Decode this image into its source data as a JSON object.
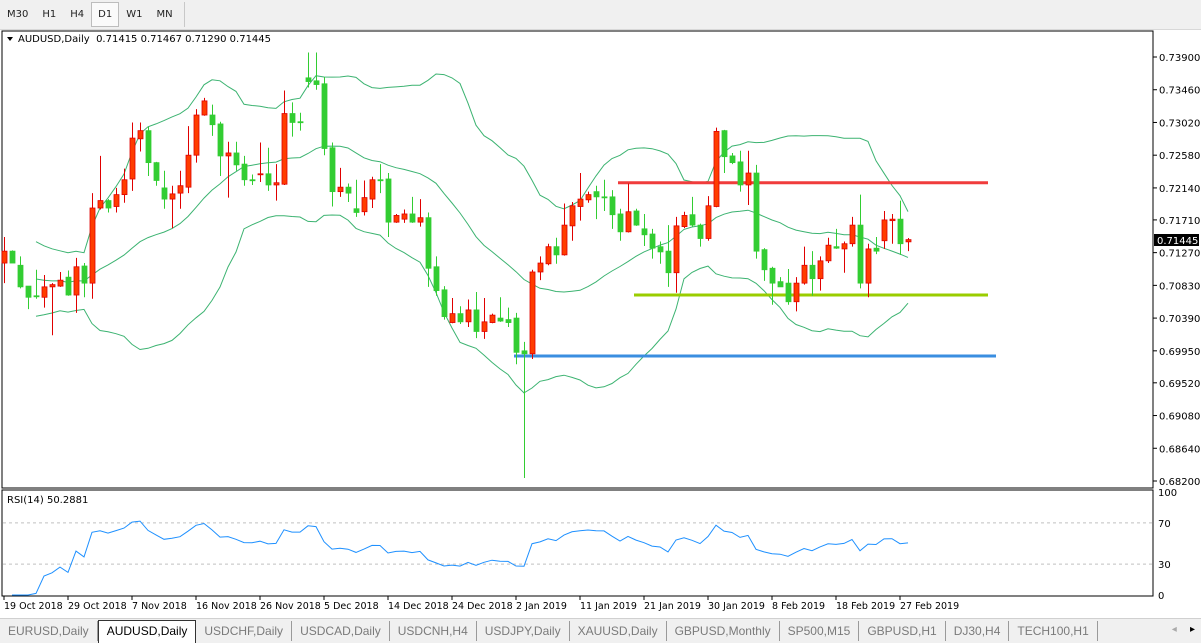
{
  "toolbar": {
    "timeframes": [
      {
        "label": "M30",
        "active": false
      },
      {
        "label": "H1",
        "active": false
      },
      {
        "label": "H4",
        "active": false
      },
      {
        "label": "D1",
        "active": true
      },
      {
        "label": "W1",
        "active": false
      },
      {
        "label": "MN",
        "active": false
      }
    ]
  },
  "chart": {
    "header": "AUDUSD,Daily  0.71415 0.71467 0.71290 0.71445",
    "current_price": "0.71445",
    "price_axis": [
      "0.73900",
      "0.73460",
      "0.73020",
      "0.72580",
      "0.72140",
      "0.71710",
      "0.71270",
      "0.70830",
      "0.70390",
      "0.69950",
      "0.69520",
      "0.69080",
      "0.68640",
      "0.68200"
    ],
    "price_range": [
      0.682,
      0.739
    ],
    "date_labels": [
      "19 Oct 2018",
      "29 Oct 2018",
      "7 Nov 2018",
      "16 Nov 2018",
      "26 Nov 2018",
      "5 Dec 2018",
      "14 Dec 2018",
      "24 Dec 2018",
      "2 Jan 2019",
      "11 Jan 2019",
      "21 Jan 2019",
      "30 Jan 2019",
      "8 Feb 2019",
      "18 Feb 2019",
      "27 Feb 2019"
    ],
    "colors": {
      "bull": "#ff3c00",
      "bull_border": "#e00000",
      "bear": "#32cd32",
      "bands": "#3cb371",
      "rsi": "#1e90ff"
    },
    "bollinger": {
      "period": 20,
      "deviations": 2
    },
    "levels": [
      {
        "name": "resistance",
        "price": 0.7221,
        "color": "#f03c3c"
      },
      {
        "name": "support",
        "price": 0.707,
        "color": "#9acd00"
      },
      {
        "name": "low",
        "price": 0.6988,
        "color": "#3a8ee0"
      }
    ],
    "rsi": {
      "label": "RSI(14) 50.2881",
      "period": 14,
      "levels": [
        "100",
        "70",
        "30",
        "0"
      ]
    }
  },
  "chart_data": {
    "type": "candlestick",
    "symbol": "AUDUSD",
    "timeframe": "Daily",
    "ohlc_note_fields": [
      "open",
      "high",
      "low",
      "close"
    ],
    "candles": [
      [
        0.7113,
        0.7148,
        0.7086,
        0.7129
      ],
      [
        0.7129,
        0.713,
        0.7113,
        0.7113
      ],
      [
        0.711,
        0.7122,
        0.7079,
        0.7081
      ],
      [
        0.7082,
        0.7082,
        0.7051,
        0.7067
      ],
      [
        0.7069,
        0.7104,
        0.7065,
        0.7068
      ],
      [
        0.7067,
        0.7097,
        0.7053,
        0.7081
      ],
      [
        0.7081,
        0.7086,
        0.7016,
        0.7084
      ],
      [
        0.7082,
        0.7101,
        0.7081,
        0.709
      ],
      [
        0.7094,
        0.7103,
        0.7069,
        0.707
      ],
      [
        0.707,
        0.712,
        0.7046,
        0.7108
      ],
      [
        0.7109,
        0.7113,
        0.7067,
        0.7086
      ],
      [
        0.7086,
        0.7207,
        0.7065,
        0.7187
      ],
      [
        0.7187,
        0.7257,
        0.7185,
        0.7197
      ],
      [
        0.7197,
        0.7199,
        0.7181,
        0.7187
      ],
      [
        0.7189,
        0.7214,
        0.7181,
        0.7205
      ],
      [
        0.7205,
        0.724,
        0.7194,
        0.7225
      ],
      [
        0.7226,
        0.7302,
        0.721,
        0.7281
      ],
      [
        0.728,
        0.7302,
        0.7263,
        0.7291
      ],
      [
        0.7291,
        0.7296,
        0.723,
        0.7248
      ],
      [
        0.7248,
        0.7249,
        0.7217,
        0.7224
      ],
      [
        0.7214,
        0.7237,
        0.7186,
        0.7199
      ],
      [
        0.7199,
        0.7217,
        0.716,
        0.7206
      ],
      [
        0.7207,
        0.7237,
        0.7186,
        0.7217
      ],
      [
        0.7215,
        0.7297,
        0.7207,
        0.7258
      ],
      [
        0.7258,
        0.732,
        0.7248,
        0.7312
      ],
      [
        0.7312,
        0.7335,
        0.7311,
        0.7331
      ],
      [
        0.7312,
        0.7326,
        0.7284,
        0.7299
      ],
      [
        0.73,
        0.7303,
        0.723,
        0.7257
      ],
      [
        0.7257,
        0.7276,
        0.7201,
        0.7261
      ],
      [
        0.7261,
        0.7276,
        0.7237,
        0.7245
      ],
      [
        0.7246,
        0.7257,
        0.7217,
        0.7225
      ],
      [
        0.7225,
        0.7232,
        0.7218,
        0.7224
      ],
      [
        0.7232,
        0.7275,
        0.7222,
        0.7233
      ],
      [
        0.7233,
        0.7268,
        0.721,
        0.7218
      ],
      [
        0.7218,
        0.7246,
        0.7197,
        0.7221
      ],
      [
        0.7219,
        0.7345,
        0.7218,
        0.7314
      ],
      [
        0.7314,
        0.7329,
        0.7283,
        0.7302
      ],
      [
        0.7303,
        0.7315,
        0.7291,
        0.7302
      ],
      [
        0.7362,
        0.7396,
        0.7349,
        0.7357
      ],
      [
        0.7358,
        0.7396,
        0.7346,
        0.7353
      ],
      [
        0.7354,
        0.7363,
        0.7258,
        0.7267
      ],
      [
        0.7268,
        0.7275,
        0.7189,
        0.7209
      ],
      [
        0.7209,
        0.7241,
        0.7202,
        0.7215
      ],
      [
        0.7215,
        0.722,
        0.7195,
        0.7207
      ],
      [
        0.7186,
        0.7225,
        0.7175,
        0.7181
      ],
      [
        0.7182,
        0.7224,
        0.7177,
        0.7201
      ],
      [
        0.7199,
        0.7229,
        0.7187,
        0.7225
      ],
      [
        0.7225,
        0.7246,
        0.7207,
        0.7224
      ],
      [
        0.7226,
        0.7234,
        0.7148,
        0.7168
      ],
      [
        0.7168,
        0.7179,
        0.7167,
        0.7177
      ],
      [
        0.7172,
        0.7185,
        0.7167,
        0.7179
      ],
      [
        0.7179,
        0.7202,
        0.7167,
        0.7168
      ],
      [
        0.7168,
        0.7199,
        0.7162,
        0.7174
      ],
      [
        0.7174,
        0.7181,
        0.7081,
        0.7106
      ],
      [
        0.7108,
        0.7122,
        0.7069,
        0.7076
      ],
      [
        0.7077,
        0.7082,
        0.7037,
        0.7041
      ],
      [
        0.7033,
        0.7066,
        0.7032,
        0.7045
      ],
      [
        0.7045,
        0.7055,
        0.7031,
        0.7034
      ],
      [
        0.7034,
        0.7064,
        0.7027,
        0.705
      ],
      [
        0.705,
        0.7074,
        0.7012,
        0.7021
      ],
      [
        0.7021,
        0.7066,
        0.7011,
        0.7034
      ],
      [
        0.7033,
        0.7045,
        0.7032,
        0.7043
      ],
      [
        0.7039,
        0.7067,
        0.7034,
        0.7035
      ],
      [
        0.7037,
        0.7053,
        0.7027,
        0.7033
      ],
      [
        0.7039,
        0.7046,
        0.6977,
        0.6993
      ],
      [
        0.6995,
        0.7007,
        0.6824,
        0.6991
      ],
      [
        0.6991,
        0.7104,
        0.6984,
        0.7101
      ],
      [
        0.7101,
        0.7122,
        0.709,
        0.7113
      ],
      [
        0.7112,
        0.7139,
        0.711,
        0.7135
      ],
      [
        0.7135,
        0.7147,
        0.7112,
        0.7124
      ],
      [
        0.7124,
        0.7193,
        0.7123,
        0.7164
      ],
      [
        0.7163,
        0.7195,
        0.7143,
        0.719
      ],
      [
        0.7189,
        0.7234,
        0.717,
        0.7199
      ],
      [
        0.7198,
        0.7209,
        0.7194,
        0.7205
      ],
      [
        0.7209,
        0.7217,
        0.7172,
        0.7202
      ],
      [
        0.7202,
        0.7225,
        0.7183,
        0.7201
      ],
      [
        0.7202,
        0.7211,
        0.7159,
        0.7178
      ],
      [
        0.7179,
        0.7186,
        0.7143,
        0.7155
      ],
      [
        0.7155,
        0.722,
        0.7154,
        0.7182
      ],
      [
        0.7183,
        0.7186,
        0.7163,
        0.7164
      ],
      [
        0.7159,
        0.7179,
        0.7136,
        0.7151
      ],
      [
        0.7152,
        0.7159,
        0.7119,
        0.7133
      ],
      [
        0.7135,
        0.7142,
        0.7112,
        0.7128
      ],
      [
        0.7129,
        0.7164,
        0.7081,
        0.71
      ],
      [
        0.71,
        0.7175,
        0.7073,
        0.7163
      ],
      [
        0.7162,
        0.7182,
        0.716,
        0.7177
      ],
      [
        0.7178,
        0.7202,
        0.7162,
        0.7164
      ],
      [
        0.7164,
        0.7166,
        0.7135,
        0.7146
      ],
      [
        0.7146,
        0.7203,
        0.7143,
        0.719
      ],
      [
        0.7189,
        0.7295,
        0.7188,
        0.729
      ],
      [
        0.7291,
        0.7292,
        0.7234,
        0.7256
      ],
      [
        0.7257,
        0.7261,
        0.7246,
        0.7248
      ],
      [
        0.7249,
        0.7264,
        0.7209,
        0.7218
      ],
      [
        0.7218,
        0.7264,
        0.7191,
        0.7234
      ],
      [
        0.7234,
        0.7245,
        0.7119,
        0.7129
      ],
      [
        0.7131,
        0.7133,
        0.7089,
        0.7104
      ],
      [
        0.7106,
        0.7108,
        0.7057,
        0.7086
      ],
      [
        0.7088,
        0.7094,
        0.7081,
        0.7081
      ],
      [
        0.7086,
        0.7105,
        0.7057,
        0.7061
      ],
      [
        0.7061,
        0.7094,
        0.7048,
        0.7086
      ],
      [
        0.7086,
        0.7135,
        0.7084,
        0.711
      ],
      [
        0.711,
        0.7129,
        0.7069,
        0.7092
      ],
      [
        0.7092,
        0.7122,
        0.7076,
        0.7116
      ],
      [
        0.7116,
        0.7147,
        0.7113,
        0.7137
      ],
      [
        0.7135,
        0.7159,
        0.7132,
        0.7133
      ],
      [
        0.7132,
        0.7142,
        0.71,
        0.7139
      ],
      [
        0.7139,
        0.7175,
        0.7135,
        0.7164
      ],
      [
        0.7164,
        0.7205,
        0.7079,
        0.7086
      ],
      [
        0.7086,
        0.7139,
        0.7067,
        0.7132
      ],
      [
        0.7133,
        0.7148,
        0.7125,
        0.7129
      ],
      [
        0.7143,
        0.7183,
        0.7132,
        0.7171
      ],
      [
        0.717,
        0.7179,
        0.7139,
        0.7172
      ],
      [
        0.7172,
        0.7197,
        0.7124,
        0.7139
      ],
      [
        0.71415,
        0.71467,
        0.7129,
        0.71445
      ]
    ],
    "ylim": [
      0.682,
      0.739
    ],
    "rsi_last": 50.2881
  },
  "tabs": {
    "items": [
      {
        "label": "EURUSD,Daily",
        "active": false
      },
      {
        "label": "AUDUSD,Daily",
        "active": true
      },
      {
        "label": "USDCHF,Daily",
        "active": false
      },
      {
        "label": "USDCAD,Daily",
        "active": false
      },
      {
        "label": "USDCNH,H4",
        "active": false
      },
      {
        "label": "USDJPY,Daily",
        "active": false
      },
      {
        "label": "XAUUSD,Daily",
        "active": false
      },
      {
        "label": "GBPUSD,Monthly",
        "active": false
      },
      {
        "label": "SP500,M15",
        "active": false
      },
      {
        "label": "GBPUSD,H1",
        "active": false
      },
      {
        "label": "DJ30,H4",
        "active": false
      },
      {
        "label": "TECH100,H1",
        "active": false
      }
    ],
    "scroll_left": "◂",
    "scroll_right": "▸"
  }
}
